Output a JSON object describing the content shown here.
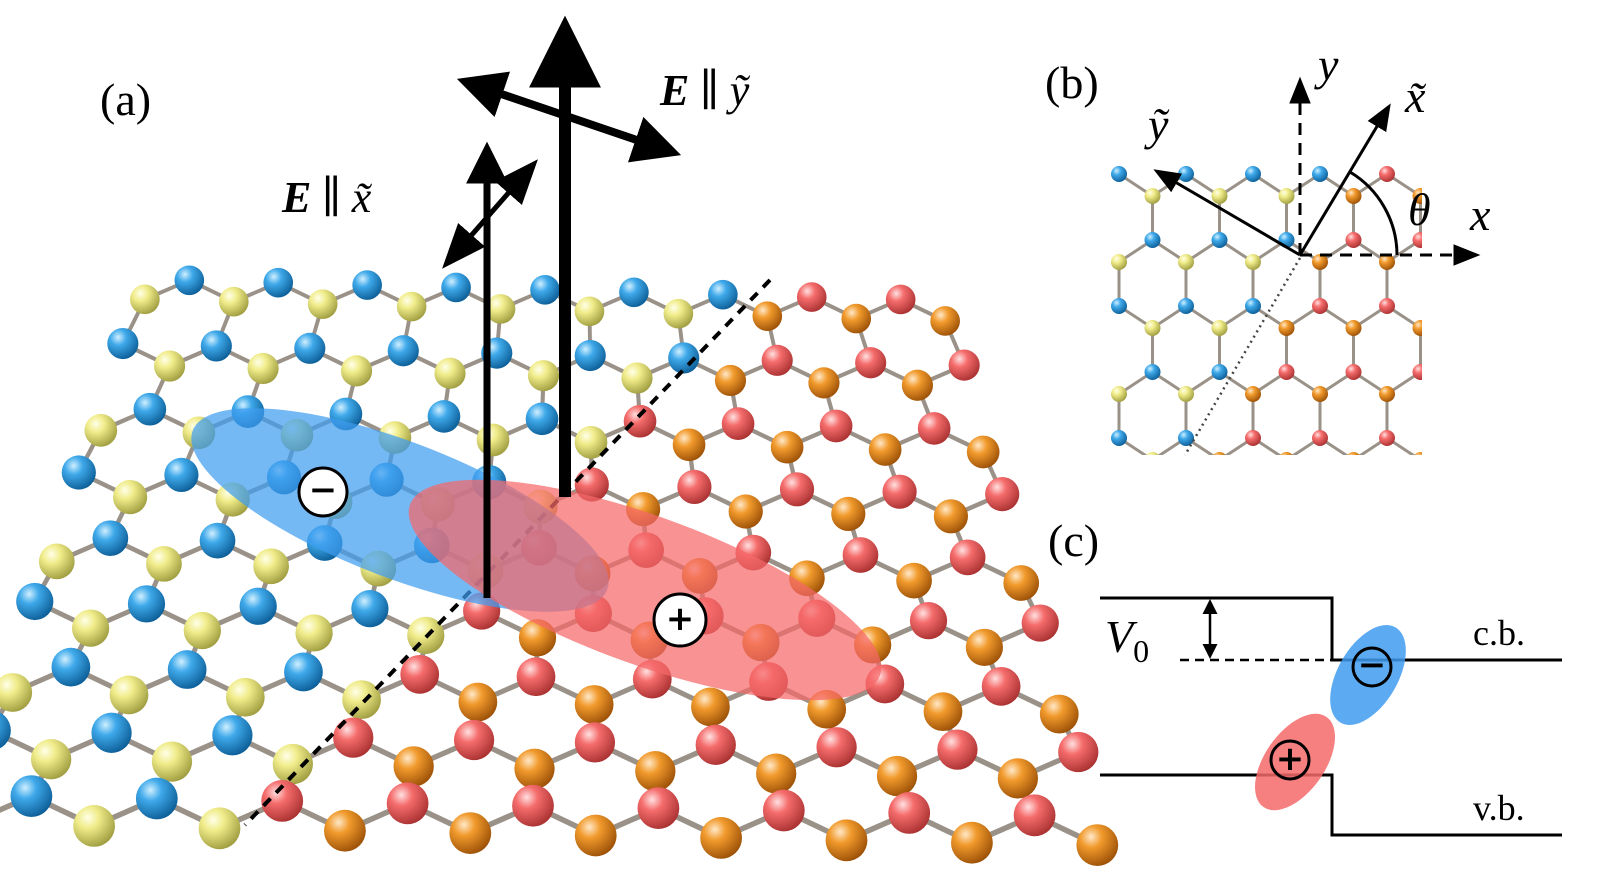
{
  "panel_a": {
    "label": "(a)",
    "field_x": {
      "symbol": "E",
      "relation": "∥",
      "axis": "x̃"
    },
    "field_y": {
      "symbol": "E",
      "relation": "∥",
      "axis": "ỹ"
    },
    "electron_sign": "−",
    "hole_sign": "+"
  },
  "panel_b": {
    "label": "(b)",
    "axis_y": "y",
    "axis_x": "x",
    "axis_x_rot": "x̃",
    "axis_y_rot": "ỹ",
    "angle": "θ"
  },
  "panel_c": {
    "label": "(c)",
    "offset": {
      "symbol": "V",
      "subscript": "0"
    },
    "conduction_band": "c.b.",
    "valence_band": "v.b.",
    "electron_sign": "−",
    "hole_sign": "+"
  }
}
